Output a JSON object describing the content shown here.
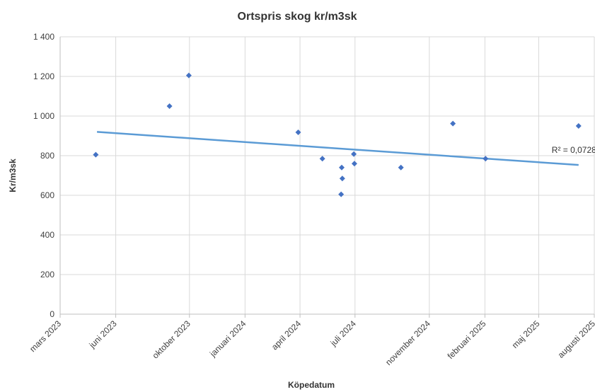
{
  "chart_data": {
    "type": "scatter",
    "title": "Ortspris skog kr/m3sk",
    "xlabel": "Köpedatum",
    "ylabel": "Kr/m3sk",
    "ylim": [
      0,
      1400
    ],
    "xlim": [
      "2023-03-01",
      "2025-08-01"
    ],
    "y_ticks": [
      0,
      200,
      400,
      600,
      800,
      1000,
      1200,
      1400
    ],
    "y_tick_labels": [
      "0",
      "200",
      "400",
      "600",
      "800",
      "1 000",
      "1 200",
      "1 400"
    ],
    "x_ticks": [
      "2023-03-01",
      "2023-06-01",
      "2023-10-01",
      "2024-01-01",
      "2024-04-01",
      "2024-07-01",
      "2024-11-01",
      "2025-02-01",
      "2025-05-01",
      "2025-08-01"
    ],
    "x_tick_labels": [
      "mars 2023",
      "juni 2023",
      "oktober 2023",
      "januari 2024",
      "april 2024",
      "juli 2024",
      "november 2024",
      "februari 2025",
      "maj 2025",
      "augusti 2025"
    ],
    "grid": true,
    "series": [
      {
        "points": [
          {
            "x": "2023-04-29",
            "y": 805
          },
          {
            "x": "2023-08-29",
            "y": 1050
          },
          {
            "x": "2023-09-30",
            "y": 1205
          },
          {
            "x": "2024-03-29",
            "y": 918
          },
          {
            "x": "2024-05-08",
            "y": 785
          },
          {
            "x": "2024-06-09",
            "y": 740
          },
          {
            "x": "2024-06-10",
            "y": 685
          },
          {
            "x": "2024-06-08",
            "y": 605
          },
          {
            "x": "2024-06-29",
            "y": 808
          },
          {
            "x": "2024-06-30",
            "y": 760
          },
          {
            "x": "2024-09-15",
            "y": 740
          },
          {
            "x": "2024-12-10",
            "y": 962
          },
          {
            "x": "2025-02-02",
            "y": 785
          },
          {
            "x": "2025-07-06",
            "y": 950
          }
        ],
        "color": "#4472C4"
      }
    ],
    "trendline": {
      "type": "linear",
      "start": {
        "x": "2023-05-01",
        "y": 920
      },
      "end": {
        "x": "2025-07-06",
        "y": 753
      },
      "color": "#5B9BD5",
      "label": "R² = 0,0728"
    }
  }
}
